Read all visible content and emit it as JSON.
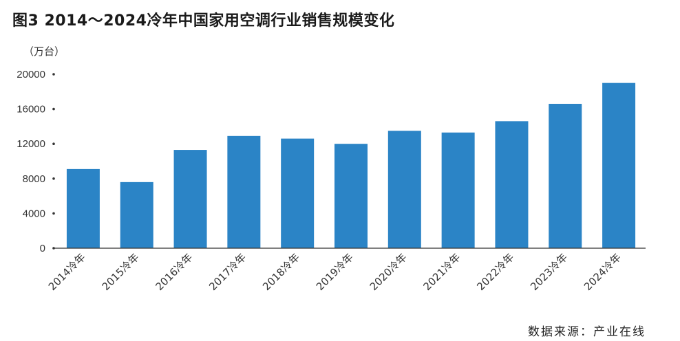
{
  "title": "图3  2014～2024冷年中国家用空调行业销售规模变化",
  "unit": "（万台）",
  "source": "数据来源：产业在线",
  "chart_data": {
    "type": "bar",
    "categories": [
      "2014冷年",
      "2015冷年",
      "2016冷年",
      "2017冷年",
      "2018冷年",
      "2019冷年",
      "2020冷年",
      "2021冷年",
      "2022冷年",
      "2023冷年",
      "2024冷年"
    ],
    "values": [
      9100,
      7600,
      11300,
      12900,
      12600,
      12000,
      13500,
      13300,
      14600,
      16600,
      19000
    ],
    "yticks": [
      0,
      4000,
      8000,
      12000,
      16000,
      20000
    ],
    "ylim": [
      0,
      20000
    ],
    "ylabel": "（万台）",
    "xlabel": "",
    "bar_color": "#2b84c6",
    "grid": false,
    "legend": "none"
  }
}
